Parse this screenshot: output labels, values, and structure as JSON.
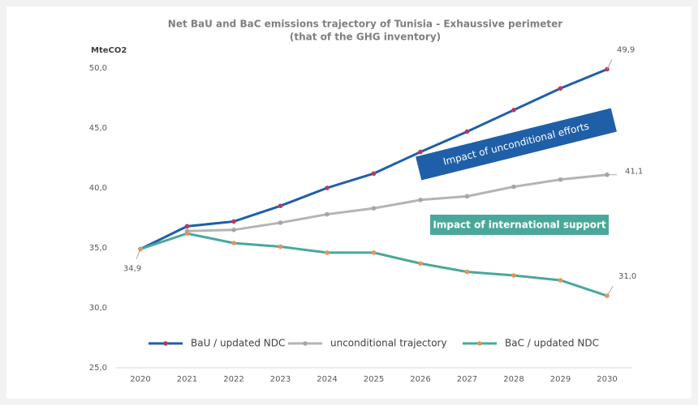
{
  "chart_data": {
    "type": "line",
    "title": "Net BaU and BaC emissions trajectory of Tunisia - Exhaussive perimeter",
    "subtitle": "(that of the GHG inventory)",
    "y_label": "MteCO2",
    "x": [
      2020,
      2021,
      2022,
      2023,
      2024,
      2025,
      2026,
      2027,
      2028,
      2029,
      2030
    ],
    "xlim": [
      2020,
      2030
    ],
    "xticks": [
      2020,
      2021,
      2022,
      2023,
      2024,
      2025,
      2026,
      2027,
      2028,
      2029,
      2030
    ],
    "ylim": [
      25,
      50
    ],
    "yticks": [
      {
        "value": 25,
        "label": "25,0"
      },
      {
        "value": 30,
        "label": "30,0"
      },
      {
        "value": 35,
        "label": "35,0"
      },
      {
        "value": 40,
        "label": "40,0"
      },
      {
        "value": 45,
        "label": "45,0"
      },
      {
        "value": 50,
        "label": "50,0"
      }
    ],
    "grid": false,
    "legend": "bottom",
    "series": [
      {
        "name": "BaU / updated NDC",
        "color": "#1f5fa8",
        "marker_color": "#b03a6a",
        "values": [
          34.9,
          36.8,
          37.2,
          38.5,
          40.0,
          41.2,
          43.0,
          44.7,
          46.5,
          48.3,
          49.9
        ],
        "value_labels": [
          null,
          null,
          null,
          null,
          null,
          null,
          null,
          null,
          null,
          null,
          "49,9"
        ]
      },
      {
        "name": "unconditional trajectory",
        "color": "#b4b4b4",
        "marker_color": "#a6a6a6",
        "values": [
          null,
          36.4,
          36.5,
          37.1,
          37.8,
          38.3,
          39.0,
          39.3,
          40.1,
          40.7,
          41.1
        ],
        "value_labels": [
          null,
          null,
          null,
          null,
          null,
          null,
          null,
          null,
          null,
          null,
          "41,1"
        ]
      },
      {
        "name": "BaC / updated NDC",
        "color": "#4aa89a",
        "marker_color": "#e0955a",
        "values": [
          34.9,
          36.2,
          35.4,
          35.1,
          34.6,
          34.6,
          33.7,
          33.0,
          32.7,
          32.3,
          31.0
        ],
        "value_labels": [
          "34,9",
          null,
          null,
          null,
          null,
          null,
          null,
          null,
          null,
          null,
          "31,0"
        ]
      }
    ],
    "annotations": [
      {
        "text": "Impact of unconditional efforts",
        "color": "#1f5fa8"
      },
      {
        "text": "Impact of international support",
        "color": "#4aa89a"
      }
    ]
  }
}
